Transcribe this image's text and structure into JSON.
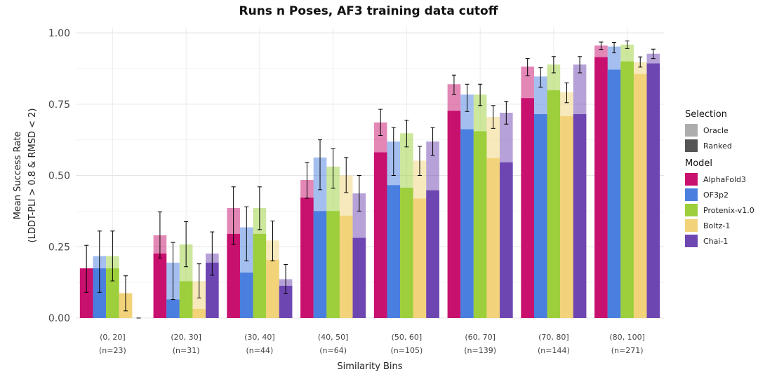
{
  "chart_data": {
    "type": "bar",
    "title": "Runs n Poses, AF3 training data cutoff",
    "xlabel": "Similarity Bins",
    "ylabel_line1": "Mean Success Rate",
    "ylabel_line2": "(LDDT-PLI > 0.8 & RMSD < 2)",
    "ylim": [
      0,
      1.0
    ],
    "yticks": [
      "0.00",
      "0.25",
      "0.50",
      "0.75",
      "1.00"
    ],
    "categories": [
      "(0, 20]",
      "(20, 30]",
      "(30, 40]",
      "(40, 50]",
      "(50, 60]",
      "(60, 70]",
      "(70, 80]",
      "(80, 100]"
    ],
    "counts": [
      "(n=23)",
      "(n=31)",
      "(n=44)",
      "(n=64)",
      "(n=105)",
      "(n=139)",
      "(n=144)",
      "(n=271)"
    ],
    "series": [
      {
        "name": "AlphaFold3",
        "color": "#c8106e",
        "ranked": [
          0.174,
          0.226,
          0.295,
          0.422,
          0.581,
          0.727,
          0.771,
          0.915
        ],
        "oracle": [
          0.174,
          0.29,
          0.386,
          0.484,
          0.686,
          0.82,
          0.882,
          0.956
        ],
        "oracle_err": [
          [
            0.09,
            0.255
          ],
          [
            0.21,
            0.372
          ],
          [
            0.258,
            0.46
          ],
          [
            0.42,
            0.546
          ],
          [
            0.64,
            0.732
          ],
          [
            0.785,
            0.852
          ],
          [
            0.85,
            0.91
          ],
          [
            0.942,
            0.968
          ]
        ]
      },
      {
        "name": "OF3p2",
        "color": "#4a7fe0",
        "ranked": [
          0.174,
          0.065,
          0.159,
          0.375,
          0.466,
          0.662,
          0.715,
          0.871
        ],
        "oracle": [
          0.217,
          0.194,
          0.318,
          0.563,
          0.619,
          0.784,
          0.847,
          0.952
        ],
        "oracle_err": [
          [
            0.09,
            0.305
          ],
          [
            0.065,
            0.265
          ],
          [
            0.2,
            0.39
          ],
          [
            0.45,
            0.625
          ],
          [
            0.5,
            0.668
          ],
          [
            0.724,
            0.82
          ],
          [
            0.81,
            0.878
          ],
          [
            0.93,
            0.967
          ]
        ]
      },
      {
        "name": "Protenix-v1.0",
        "color": "#9ccf3b",
        "ranked": [
          0.174,
          0.129,
          0.295,
          0.375,
          0.457,
          0.655,
          0.799,
          0.9
        ],
        "oracle": [
          0.217,
          0.258,
          0.386,
          0.531,
          0.648,
          0.784,
          0.889,
          0.959
        ],
        "oracle_err": [
          [
            0.13,
            0.305
          ],
          [
            0.18,
            0.338
          ],
          [
            0.31,
            0.46
          ],
          [
            0.455,
            0.594
          ],
          [
            0.6,
            0.694
          ],
          [
            0.745,
            0.82
          ],
          [
            0.86,
            0.917
          ],
          [
            0.945,
            0.972
          ]
        ]
      },
      {
        "name": "Boltz-1",
        "color": "#f2d37a",
        "ranked": [
          0.087,
          0.032,
          0.204,
          0.359,
          0.419,
          0.561,
          0.708,
          0.856
        ],
        "oracle": [
          0.087,
          0.129,
          0.272,
          0.5,
          0.552,
          0.705,
          0.792,
          0.897
        ],
        "oracle_err": [
          [
            0.025,
            0.148
          ],
          [
            0.07,
            0.19
          ],
          [
            0.2,
            0.34
          ],
          [
            0.44,
            0.563
          ],
          [
            0.5,
            0.602
          ],
          [
            0.665,
            0.745
          ],
          [
            0.755,
            0.825
          ],
          [
            0.88,
            0.916
          ]
        ]
      },
      {
        "name": "Chai-1",
        "color": "#6e46b2",
        "ranked": [
          0.0,
          0.194,
          0.113,
          0.281,
          0.448,
          0.546,
          0.715,
          0.893
        ],
        "oracle": [
          0.0,
          0.226,
          0.136,
          0.437,
          0.619,
          0.72,
          0.889,
          0.927
        ],
        "oracle_err": [
          [
            0.0,
            0.0
          ],
          [
            0.15,
            0.302
          ],
          [
            0.085,
            0.188
          ],
          [
            0.375,
            0.5
          ],
          [
            0.57,
            0.668
          ],
          [
            0.68,
            0.76
          ],
          [
            0.86,
            0.917
          ],
          [
            0.91,
            0.943
          ]
        ]
      }
    ],
    "legend": {
      "selection_title": "Selection",
      "selection_items": [
        {
          "label": "Oracle",
          "color": "#adadad"
        },
        {
          "label": "Ranked",
          "color": "#555555"
        }
      ],
      "model_title": "Model"
    }
  }
}
